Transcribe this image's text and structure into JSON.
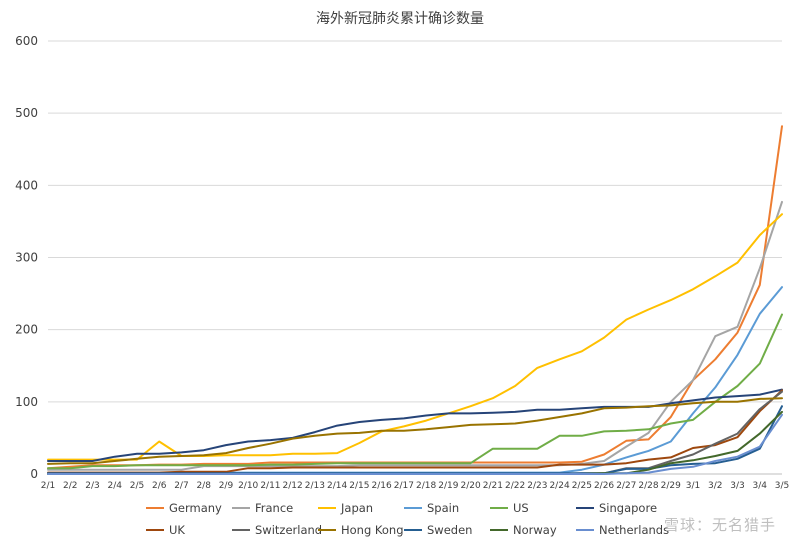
{
  "chart_data": {
    "type": "line",
    "title": "海外新冠肺炎累计确诊数量",
    "xlabel": "",
    "ylabel": "",
    "ylim": [
      0,
      600
    ],
    "yticks": [
      0,
      100,
      200,
      300,
      400,
      500,
      600
    ],
    "grid": "horizontal",
    "legend_position": "bottom",
    "categories": [
      "2/1",
      "2/2",
      "2/3",
      "2/4",
      "2/5",
      "2/6",
      "2/7",
      "2/8",
      "2/9",
      "2/10",
      "2/11",
      "2/12",
      "2/13",
      "2/14",
      "2/15",
      "2/16",
      "2/17",
      "2/18",
      "2/19",
      "2/20",
      "2/21",
      "2/22",
      "2/23",
      "2/24",
      "2/25",
      "2/26",
      "2/27",
      "2/28",
      "2/29",
      "3/1",
      "3/2",
      "3/3",
      "3/4",
      "3/5"
    ],
    "series": [
      {
        "name": "Germany",
        "color": "#ED7D31",
        "values": [
          8,
          10,
          12,
          12,
          12,
          13,
          13,
          14,
          14,
          14,
          16,
          16,
          16,
          16,
          16,
          16,
          16,
          16,
          16,
          16,
          16,
          16,
          16,
          16,
          17,
          27,
          46,
          48,
          79,
          130,
          159,
          196,
          262,
          482
        ]
      },
      {
        "name": "France",
        "color": "#A5A5A5",
        "values": [
          6,
          6,
          6,
          6,
          6,
          6,
          6,
          11,
          11,
          11,
          11,
          11,
          11,
          11,
          12,
          12,
          12,
          12,
          12,
          12,
          12,
          12,
          12,
          12,
          14,
          18,
          38,
          57,
          100,
          130,
          191,
          204,
          285,
          377
        ]
      },
      {
        "name": "Japan",
        "color": "#FFC000",
        "values": [
          20,
          20,
          20,
          20,
          20,
          45,
          25,
          25,
          26,
          26,
          26,
          28,
          28,
          29,
          43,
          59,
          66,
          74,
          84,
          94,
          105,
          122,
          147,
          159,
          170,
          189,
          214,
          228,
          241,
          256,
          274,
          293,
          331,
          360
        ]
      },
      {
        "name": "Spain",
        "color": "#5B9BD5",
        "values": [
          1,
          1,
          1,
          1,
          1,
          1,
          1,
          2,
          2,
          2,
          2,
          2,
          2,
          2,
          2,
          2,
          2,
          2,
          2,
          2,
          2,
          2,
          2,
          2,
          6,
          13,
          23,
          32,
          45,
          84,
          120,
          165,
          222,
          259
        ]
      },
      {
        "name": "US",
        "color": "#70AD47",
        "values": [
          8,
          8,
          11,
          11,
          12,
          12,
          12,
          12,
          12,
          12,
          13,
          13,
          14,
          15,
          15,
          15,
          15,
          15,
          15,
          15,
          35,
          35,
          35,
          53,
          53,
          59,
          60,
          62,
          70,
          75,
          100,
          122,
          153,
          221
        ]
      },
      {
        "name": "Singapore",
        "color": "#264478",
        "values": [
          18,
          18,
          18,
          24,
          28,
          28,
          30,
          33,
          40,
          45,
          47,
          50,
          58,
          67,
          72,
          75,
          77,
          81,
          84,
          84,
          85,
          86,
          89,
          89,
          91,
          93,
          93,
          93,
          98,
          102,
          106,
          108,
          110,
          117
        ]
      },
      {
        "name": "UK",
        "color": "#9E480E",
        "values": [
          2,
          2,
          2,
          2,
          2,
          2,
          3,
          3,
          3,
          8,
          8,
          9,
          9,
          9,
          9,
          9,
          9,
          9,
          9,
          9,
          9,
          9,
          9,
          13,
          13,
          13,
          15,
          20,
          23,
          36,
          40,
          51,
          87,
          116
        ]
      },
      {
        "name": "Switzerland",
        "color": "#636363",
        "values": [
          0,
          0,
          0,
          0,
          0,
          0,
          0,
          0,
          0,
          0,
          0,
          0,
          0,
          0,
          0,
          0,
          0,
          0,
          0,
          0,
          0,
          0,
          0,
          0,
          1,
          1,
          8,
          8,
          18,
          27,
          42,
          56,
          90,
          114
        ]
      },
      {
        "name": "Hong Kong",
        "color": "#997300",
        "values": [
          14,
          15,
          15,
          18,
          21,
          24,
          25,
          26,
          29,
          36,
          42,
          49,
          53,
          56,
          57,
          60,
          60,
          62,
          65,
          68,
          69,
          70,
          74,
          79,
          84,
          91,
          92,
          94,
          95,
          98,
          100,
          100,
          104,
          105
        ]
      },
      {
        "name": "Sweden",
        "color": "#255E91",
        "values": [
          1,
          1,
          1,
          1,
          1,
          1,
          1,
          1,
          1,
          1,
          1,
          1,
          1,
          1,
          1,
          1,
          1,
          1,
          1,
          1,
          1,
          1,
          1,
          1,
          1,
          1,
          7,
          7,
          12,
          14,
          15,
          21,
          35,
          94
        ]
      },
      {
        "name": "Norway",
        "color": "#43682B",
        "values": [
          0,
          0,
          0,
          0,
          0,
          0,
          0,
          0,
          0,
          0,
          0,
          0,
          0,
          0,
          0,
          0,
          0,
          0,
          0,
          0,
          0,
          0,
          0,
          0,
          0,
          1,
          1,
          6,
          15,
          19,
          25,
          32,
          56,
          86
        ]
      },
      {
        "name": "Netherlands",
        "color": "#698ED0",
        "values": [
          0,
          0,
          0,
          0,
          0,
          0,
          0,
          0,
          0,
          0,
          0,
          0,
          0,
          0,
          0,
          0,
          0,
          0,
          0,
          0,
          0,
          0,
          0,
          0,
          0,
          0,
          1,
          2,
          7,
          10,
          18,
          24,
          38,
          82
        ]
      }
    ]
  },
  "watermark": "雪球：无名猎手"
}
